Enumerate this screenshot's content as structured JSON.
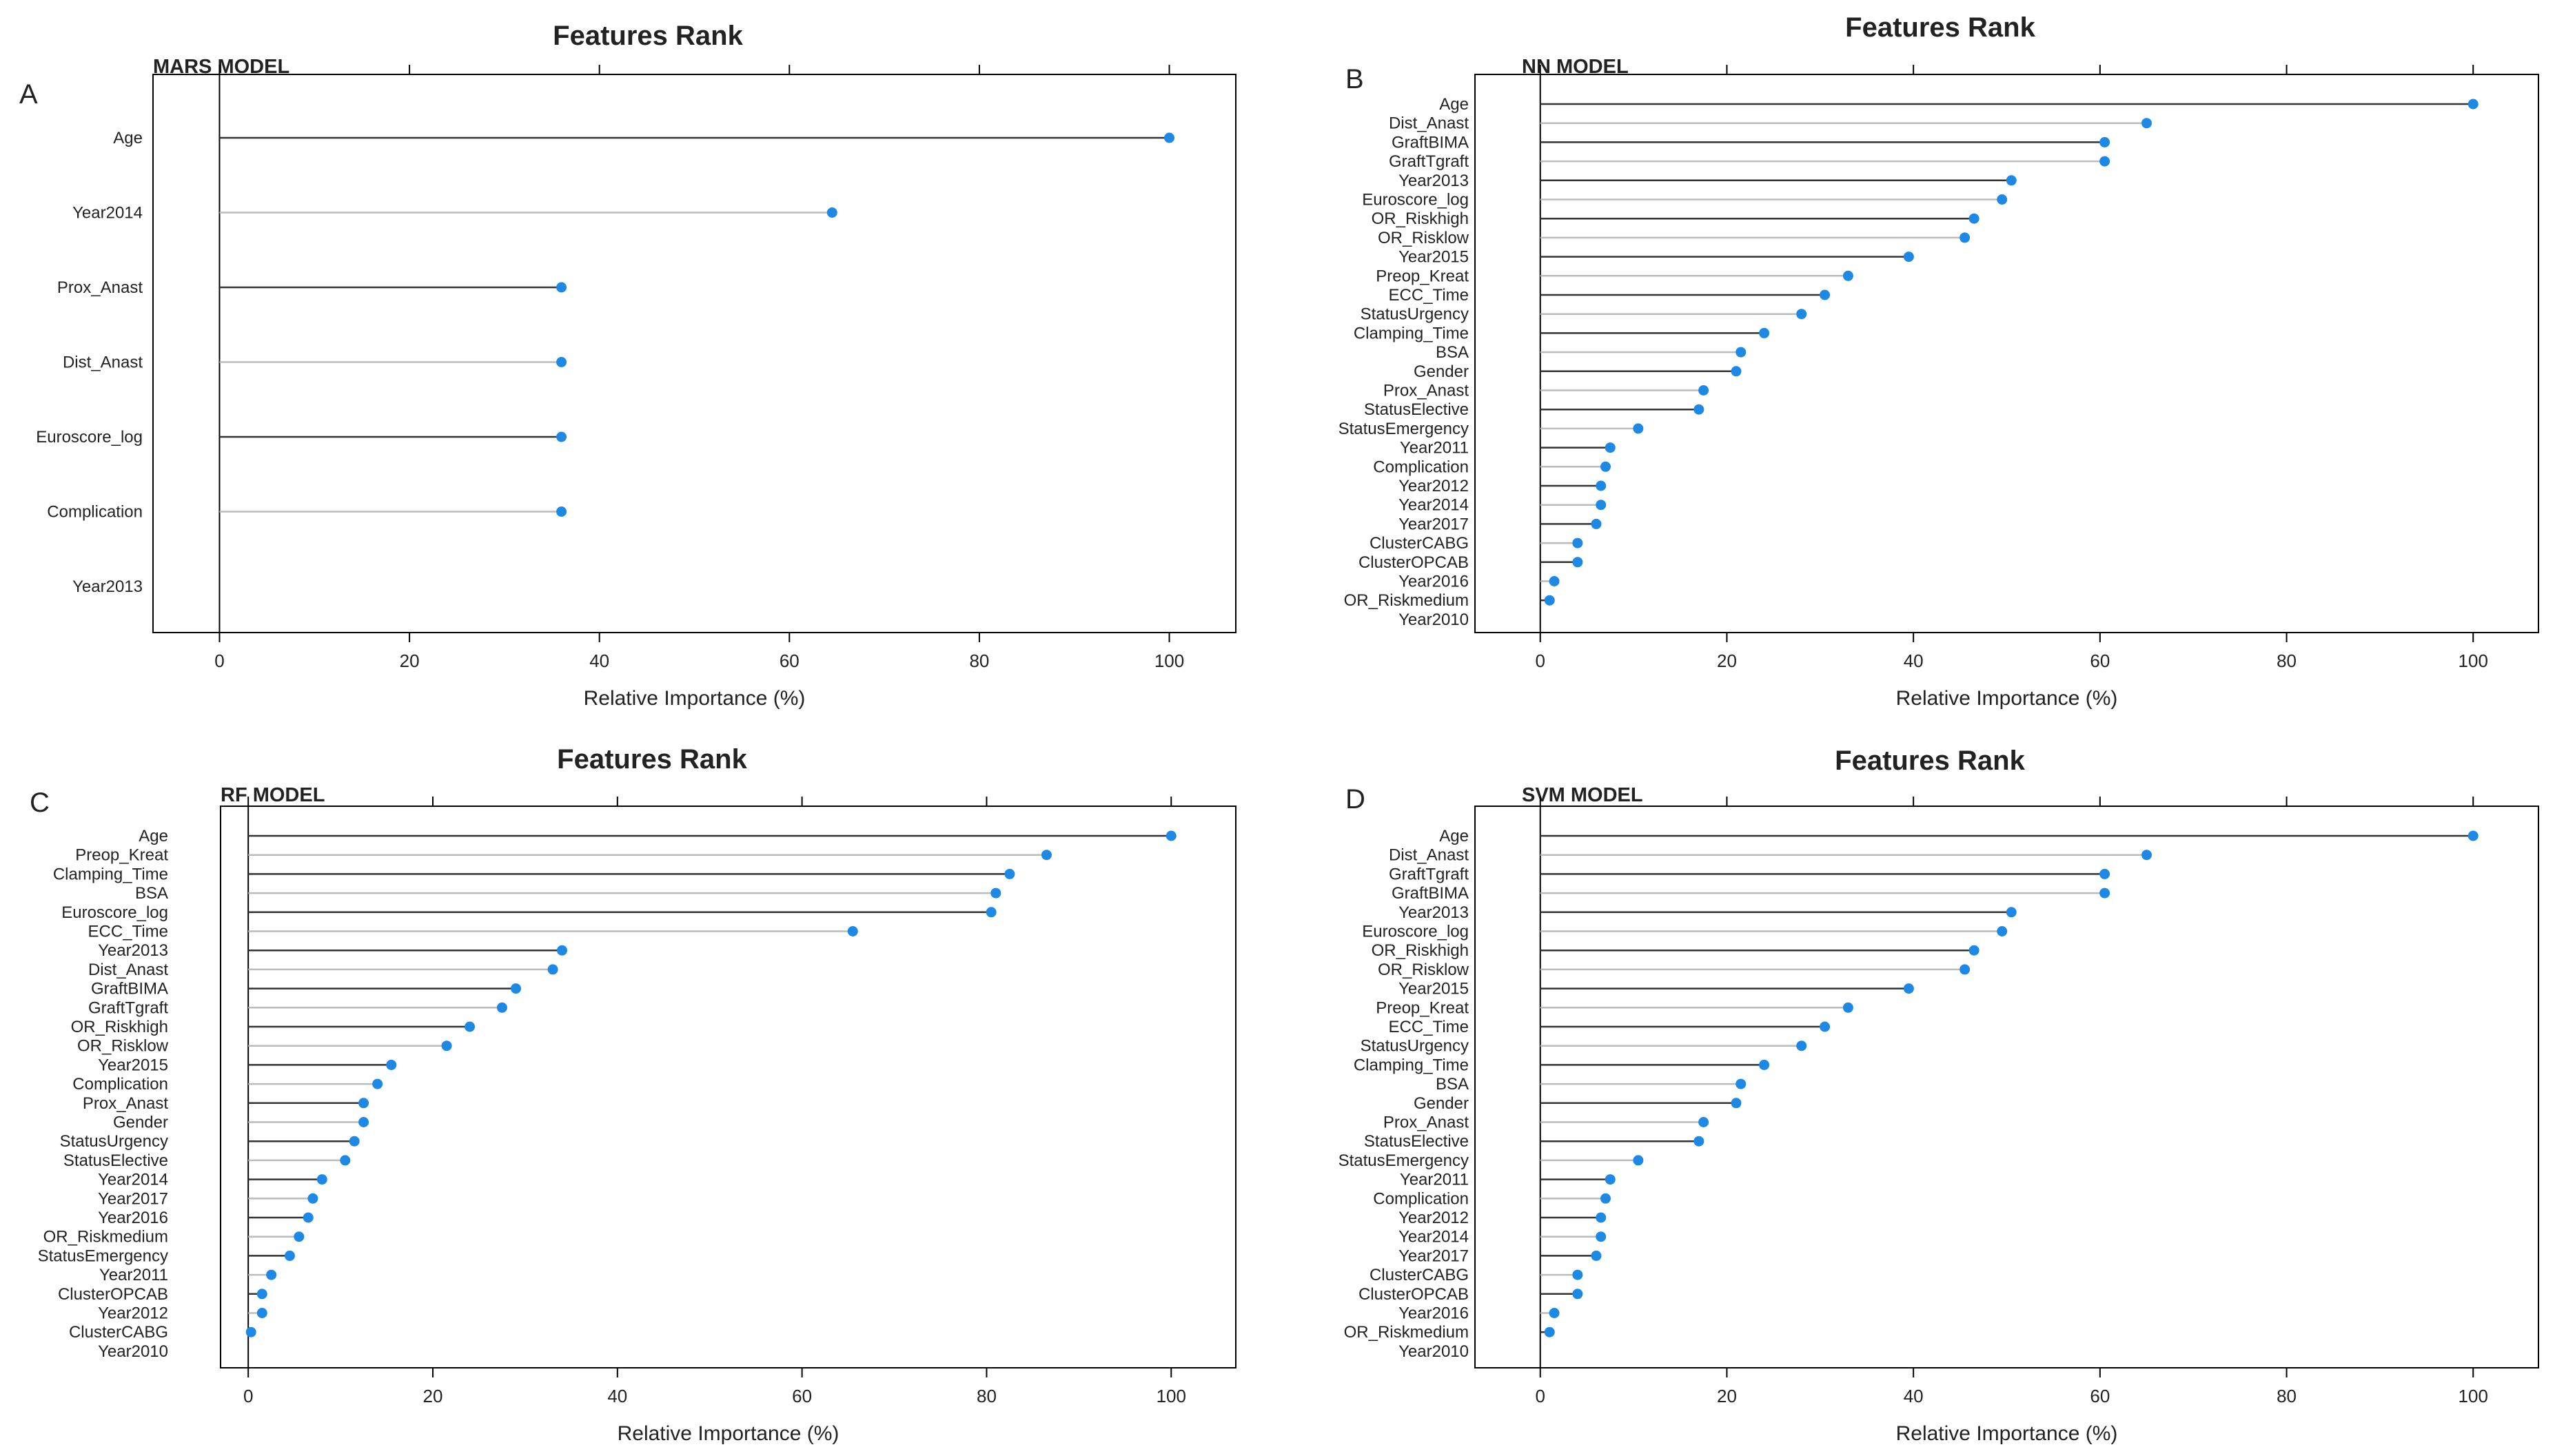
{
  "figure": {
    "xlabel": "Relative Importance (%)"
  },
  "colors": {
    "point": "#1e88e5",
    "line_dark": "#333333",
    "line_light": "#bbbbbb",
    "axis": "#000000"
  },
  "chart_data": [
    {
      "type": "lollipop",
      "panel": "A",
      "title": "Features Rank",
      "model": "MARS MODEL",
      "xlabel": "Relative Importance (%)",
      "xlim": [
        -7,
        107
      ],
      "xticks": [
        0,
        20,
        40,
        60,
        80,
        100
      ],
      "features": [
        "Age",
        "Year2014",
        "Prox_Anast",
        "Dist_Anast",
        "Euroscore_log",
        "Complication",
        "Year2013"
      ],
      "values": [
        100,
        64.5,
        36,
        36,
        36,
        36,
        0
      ],
      "show_point": [
        true,
        true,
        true,
        true,
        true,
        true,
        false
      ]
    },
    {
      "type": "lollipop",
      "panel": "B",
      "title": "Features Rank",
      "model": "NN MODEL",
      "xlabel": "Relative Importance (%)",
      "xlim": [
        -7,
        107
      ],
      "xticks": [
        0,
        20,
        40,
        60,
        80,
        100
      ],
      "features": [
        "Age",
        "Dist_Anast",
        "GraftBIMA",
        "GraftTgraft",
        "Year2013",
        "Euroscore_log",
        "OR_Riskhigh",
        "OR_Risklow",
        "Year2015",
        "Preop_Kreat",
        "ECC_Time",
        "StatusUrgency",
        "Clamping_Time",
        "BSA",
        "Gender",
        "Prox_Anast",
        "StatusElective",
        "StatusEmergency",
        "Year2011",
        "Complication",
        "Year2012",
        "Year2014",
        "Year2017",
        "ClusterCABG",
        "ClusterOPCAB",
        "Year2016",
        "OR_Riskmedium",
        "Year2010"
      ],
      "values": [
        100,
        65,
        60.5,
        60.5,
        50.5,
        49.5,
        46.5,
        45.5,
        39.5,
        33,
        30.5,
        28,
        24,
        21.5,
        21,
        17.5,
        17,
        10.5,
        7.5,
        7,
        6.5,
        6.5,
        6,
        4,
        4,
        1.5,
        1,
        0
      ],
      "show_point": [
        true,
        true,
        true,
        true,
        true,
        true,
        true,
        true,
        true,
        true,
        true,
        true,
        true,
        true,
        true,
        true,
        true,
        true,
        true,
        true,
        true,
        true,
        true,
        true,
        true,
        true,
        true,
        false
      ]
    },
    {
      "type": "lollipop",
      "panel": "C",
      "title": "Features Rank",
      "model": "RF MODEL",
      "xlabel": "Relative Importance (%)",
      "xlim": [
        -3,
        107
      ],
      "xticks": [
        0,
        20,
        40,
        60,
        80,
        100
      ],
      "features": [
        "Age",
        "Preop_Kreat",
        "Clamping_Time",
        "BSA",
        "Euroscore_log",
        "ECC_Time",
        "Year2013",
        "Dist_Anast",
        "GraftBIMA",
        "GraftTgraft",
        "OR_Riskhigh",
        "OR_Risklow",
        "Year2015",
        "Complication",
        "Prox_Anast",
        "Gender",
        "StatusUrgency",
        "StatusElective",
        "Year2014",
        "Year2017",
        "Year2016",
        "OR_Riskmedium",
        "StatusEmergency",
        "Year2011",
        "ClusterOPCAB",
        "Year2012",
        "ClusterCABG",
        "Year2010"
      ],
      "values": [
        100,
        86.5,
        82.5,
        81,
        80.5,
        65.5,
        34,
        33,
        29,
        27.5,
        24,
        21.5,
        15.5,
        14,
        12.5,
        12.5,
        11.5,
        10.5,
        8,
        7,
        6.5,
        5.5,
        4.5,
        2.5,
        1.5,
        1.5,
        0.3,
        0
      ],
      "show_point": [
        true,
        true,
        true,
        true,
        true,
        true,
        true,
        true,
        true,
        true,
        true,
        true,
        true,
        true,
        true,
        true,
        true,
        true,
        true,
        true,
        true,
        true,
        true,
        true,
        true,
        true,
        true,
        false
      ]
    },
    {
      "type": "lollipop",
      "panel": "D",
      "title": "Features Rank",
      "model": "SVM MODEL",
      "xlabel": "Relative Importance (%)",
      "xlim": [
        -7,
        107
      ],
      "xticks": [
        0,
        20,
        40,
        60,
        80,
        100
      ],
      "features": [
        "Age",
        "Dist_Anast",
        "GraftTgraft",
        "GraftBIMA",
        "Year2013",
        "Euroscore_log",
        "OR_Riskhigh",
        "OR_Risklow",
        "Year2015",
        "Preop_Kreat",
        "ECC_Time",
        "StatusUrgency",
        "Clamping_Time",
        "BSA",
        "Gender",
        "Prox_Anast",
        "StatusElective",
        "StatusEmergency",
        "Year2011",
        "Complication",
        "Year2012",
        "Year2014",
        "Year2017",
        "ClusterCABG",
        "ClusterOPCAB",
        "Year2016",
        "OR_Riskmedium",
        "Year2010"
      ],
      "values": [
        100,
        65,
        60.5,
        60.5,
        50.5,
        49.5,
        46.5,
        45.5,
        39.5,
        33,
        30.5,
        28,
        24,
        21.5,
        21,
        17.5,
        17,
        10.5,
        7.5,
        7,
        6.5,
        6.5,
        6,
        4,
        4,
        1.5,
        1,
        0
      ],
      "show_point": [
        true,
        true,
        true,
        true,
        true,
        true,
        true,
        true,
        true,
        true,
        true,
        true,
        true,
        true,
        true,
        true,
        true,
        true,
        true,
        true,
        true,
        true,
        true,
        true,
        true,
        true,
        true,
        false
      ]
    }
  ]
}
